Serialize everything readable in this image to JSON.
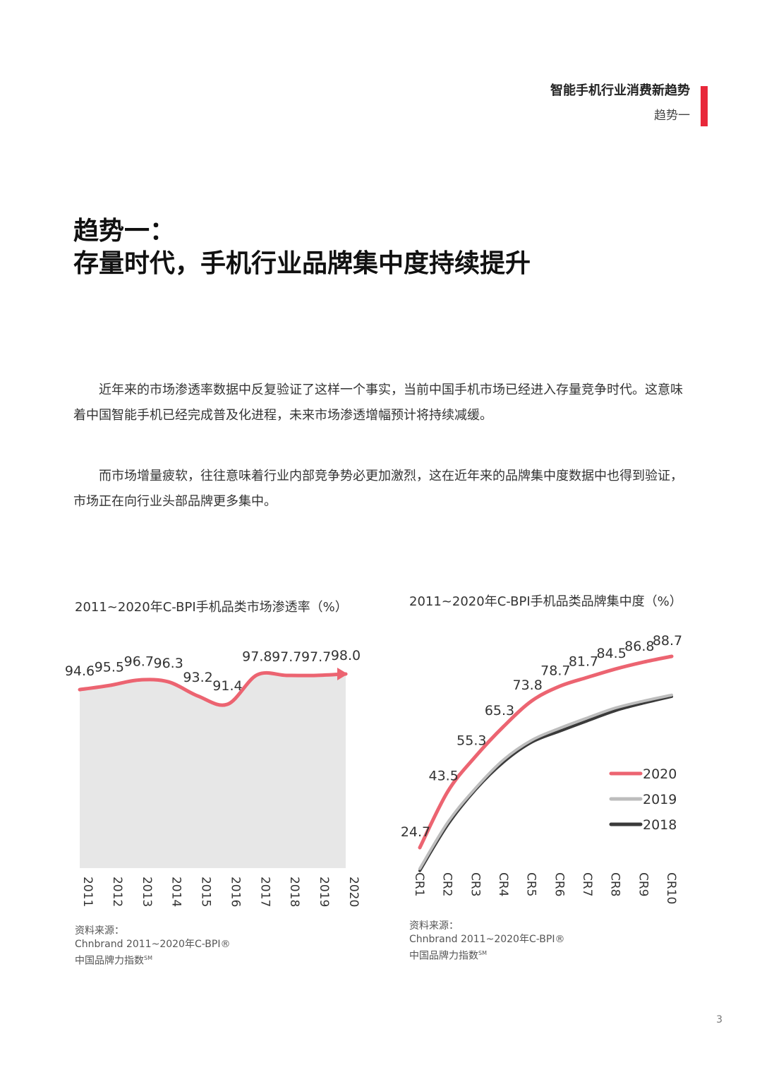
{
  "header": {
    "title": "智能手机行业消费新趋势",
    "subtitle": "趋势一",
    "accent_color": "#e8283a"
  },
  "title": {
    "line1": "趋势一：",
    "line2": "存量时代，手机行业品牌集中度持续提升"
  },
  "paragraphs": [
    "近年来的市场渗透率数据中反复验证了这样一个事实，当前中国手机市场已经进入存量竞争时代。这意味着中国智能手机已经完成普及化进程，未来市场渗透增幅预计将持续减缓。",
    "而市场增量疲软，往往意味着行业内部竞争势必更加激烈，这在近年来的品牌集中度数据中也得到验证，市场正在向行业头部品牌更多集中。"
  ],
  "chart_data": [
    {
      "type": "area",
      "title": "2011~2020年C-BPI手机品类市场渗透率（%）",
      "x": [
        "2011",
        "2012",
        "2013",
        "2014",
        "2015",
        "2016",
        "2017",
        "2018",
        "2019",
        "2020"
      ],
      "values": [
        94.6,
        95.5,
        96.7,
        96.3,
        93.2,
        91.4,
        97.8,
        97.7,
        97.7,
        98.0
      ],
      "line_color": "#ec6471",
      "fill_color": "#e7e7e7",
      "grid": false,
      "source": {
        "label": "资料来源：",
        "line1": "Chnbrand 2011~2020年C-BPI®",
        "line2": "中国品牌力指数",
        "sup": "SM"
      }
    },
    {
      "type": "line",
      "title": "2011~2020年C-BPI手机品类品牌集中度（%）",
      "categories": [
        "CR1",
        "CR2",
        "CR3",
        "CR4",
        "CR5",
        "CR6",
        "CR7",
        "CR8",
        "CR9",
        "CR10"
      ],
      "series": [
        {
          "name": "2020",
          "color": "#ec6471",
          "values": [
            24.7,
            43.5,
            55.3,
            65.3,
            73.8,
            78.7,
            81.7,
            84.5,
            86.8,
            88.7
          ]
        },
        {
          "name": "2019",
          "color": "#bdbdbd",
          "values": [
            20.5,
            36.0,
            47.5,
            57.0,
            63.5,
            67.5,
            71.0,
            74.3,
            76.6,
            78.6
          ]
        },
        {
          "name": "2018",
          "color": "#3a3a3a",
          "values": [
            19.8,
            35.2,
            47.0,
            56.2,
            62.8,
            66.5,
            70.0,
            73.4,
            75.9,
            78.1
          ]
        }
      ],
      "ylim": [
        15,
        95
      ],
      "legend_position": "right",
      "grid": false,
      "source": {
        "label": "资料来源：",
        "line1": "Chnbrand 2011~2020年C-BPI®",
        "line2": "中国品牌力指数",
        "sup": "SM"
      }
    }
  ],
  "page_number": "3"
}
